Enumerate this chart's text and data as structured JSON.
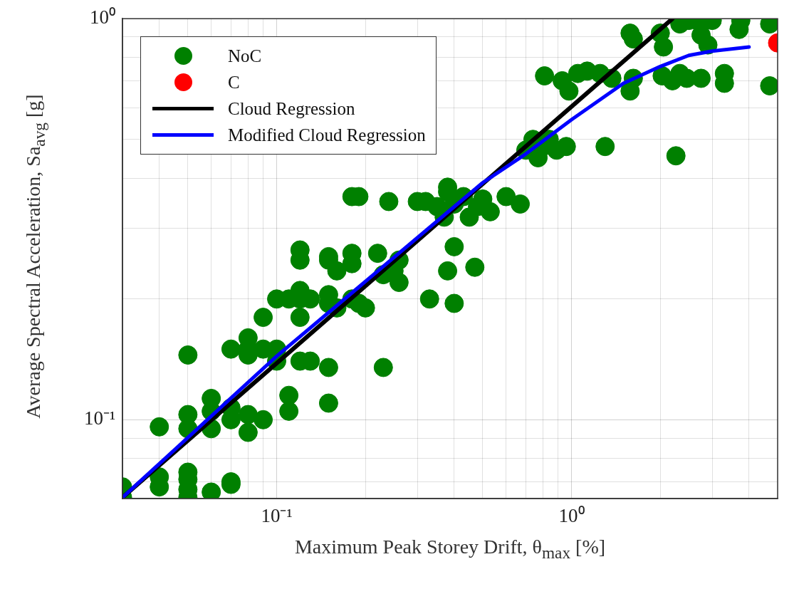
{
  "chart_data": {
    "type": "scatter",
    "xlabel": "Maximum Peak Storey Drift, θ$_{max}$ [%]",
    "ylabel": "Average Spectral Acceleration, Sa$_{avg}$ [g]",
    "log": "xy",
    "grid": true,
    "legend": "top left",
    "xlim": [
      0.03,
      5
    ],
    "ylim": [
      0.0636,
      1
    ],
    "xticks": [
      {
        "value": 0.03,
        "label": null
      },
      {
        "value": 0.04,
        "label": null
      },
      {
        "value": 0.05,
        "label": null
      },
      {
        "value": 0.06,
        "label": null
      },
      {
        "value": 0.07,
        "label": null
      },
      {
        "value": 0.08,
        "label": null
      },
      {
        "value": 0.09,
        "label": null
      },
      {
        "value": 0.1,
        "label": "10⁻¹"
      },
      {
        "value": 0.2,
        "label": null
      },
      {
        "value": 0.3,
        "label": null
      },
      {
        "value": 0.4,
        "label": null
      },
      {
        "value": 0.5,
        "label": null
      },
      {
        "value": 0.6,
        "label": null
      },
      {
        "value": 0.7,
        "label": null
      },
      {
        "value": 0.8,
        "label": null
      },
      {
        "value": 0.9,
        "label": null
      },
      {
        "value": 1,
        "label": "10⁰"
      },
      {
        "value": 2,
        "label": null
      },
      {
        "value": 3,
        "label": null
      },
      {
        "value": 4,
        "label": null
      },
      {
        "value": 5,
        "label": null
      }
    ],
    "yticks": [
      {
        "value": 0.07,
        "label": null
      },
      {
        "value": 0.08,
        "label": null
      },
      {
        "value": 0.09,
        "label": null
      },
      {
        "value": 0.1,
        "label": "10⁻¹"
      },
      {
        "value": 0.2,
        "label": null
      },
      {
        "value": 0.3,
        "label": null
      },
      {
        "value": 0.4,
        "label": null
      },
      {
        "value": 0.5,
        "label": null
      },
      {
        "value": 0.6,
        "label": null
      },
      {
        "value": 0.7,
        "label": null
      },
      {
        "value": 0.8,
        "label": null
      },
      {
        "value": 0.9,
        "label": null
      },
      {
        "value": 1,
        "label": "10⁰"
      }
    ],
    "series": [
      {
        "name": "NoC",
        "marker": "circle",
        "color": "#008000",
        "x": [
          0.03,
          0.03,
          0.04,
          0.04,
          0.04,
          0.05,
          0.05,
          0.05,
          0.05,
          0.05,
          0.05,
          0.05,
          0.06,
          0.06,
          0.06,
          0.06,
          0.07,
          0.07,
          0.07,
          0.07,
          0.07,
          0.08,
          0.08,
          0.08,
          0.08,
          0.08,
          0.09,
          0.09,
          0.09,
          0.1,
          0.1,
          0.1,
          0.11,
          0.11,
          0.11,
          0.12,
          0.12,
          0.12,
          0.12,
          0.12,
          0.12,
          0.13,
          0.13,
          0.15,
          0.15,
          0.15,
          0.15,
          0.15,
          0.15,
          0.16,
          0.16,
          0.18,
          0.18,
          0.18,
          0.18,
          0.19,
          0.19,
          0.2,
          0.22,
          0.23,
          0.23,
          0.24,
          0.25,
          0.26,
          0.26,
          0.3,
          0.32,
          0.33,
          0.35,
          0.37,
          0.38,
          0.38,
          0.38,
          0.4,
          0.4,
          0.4,
          0.43,
          0.45,
          0.47,
          0.48,
          0.5,
          0.53,
          0.6,
          0.67,
          0.7,
          0.74,
          0.77,
          0.8,
          0.84,
          0.89,
          0.96,
          1.3,
          2.26,
          0.81,
          0.93,
          0.98,
          1.05,
          1.13,
          1.25,
          1.37,
          1.58,
          1.62,
          2.03,
          2.2,
          2.33,
          2.46,
          2.75,
          3.3,
          3.3,
          4.7,
          1.58,
          1.62,
          2,
          2.05,
          2.33,
          2.5,
          2.75,
          2.75,
          2.9,
          3,
          3.7,
          3.75,
          4.7
        ],
        "values": [
          0.068,
          0.064,
          0.096,
          0.072,
          0.068,
          0.145,
          0.103,
          0.095,
          0.074,
          0.071,
          0.067,
          0.064,
          0.113,
          0.105,
          0.095,
          0.066,
          0.15,
          0.107,
          0.1,
          0.07,
          0.069,
          0.16,
          0.15,
          0.145,
          0.103,
          0.093,
          0.18,
          0.15,
          0.1,
          0.2,
          0.15,
          0.14,
          0.2,
          0.115,
          0.105,
          0.265,
          0.25,
          0.21,
          0.2,
          0.18,
          0.14,
          0.2,
          0.14,
          0.255,
          0.25,
          0.205,
          0.195,
          0.135,
          0.11,
          0.235,
          0.19,
          0.36,
          0.26,
          0.245,
          0.2,
          0.36,
          0.195,
          0.19,
          0.26,
          0.23,
          0.135,
          0.35,
          0.235,
          0.25,
          0.22,
          0.35,
          0.35,
          0.2,
          0.34,
          0.32,
          0.37,
          0.38,
          0.235,
          0.345,
          0.27,
          0.195,
          0.36,
          0.32,
          0.24,
          0.34,
          0.355,
          0.33,
          0.36,
          0.345,
          0.47,
          0.5,
          0.45,
          0.48,
          0.5,
          0.47,
          0.48,
          0.48,
          0.455,
          0.72,
          0.7,
          0.66,
          0.73,
          0.74,
          0.73,
          0.71,
          0.66,
          0.71,
          0.72,
          0.7,
          0.73,
          0.71,
          0.71,
          0.73,
          0.69,
          0.68,
          0.92,
          0.89,
          0.92,
          0.85,
          0.97,
          0.99,
          0.91,
          0.97,
          0.86,
          0.99,
          0.94,
          0.99,
          0.97
        ]
      },
      {
        "name": "C",
        "marker": "circle",
        "color": "#ff0000",
        "x": [
          5
        ],
        "values": [
          0.87
        ]
      },
      {
        "name": "Cloud Regression",
        "type": "line",
        "marker": "none",
        "color": "#000000",
        "x": [
          0.03,
          2.2
        ],
        "values": [
          0.064,
          1
        ]
      },
      {
        "name": "Modified Cloud Regression",
        "type": "line",
        "marker": "none",
        "color": "#0000ff",
        "x": [
          0.03,
          0.1,
          0.5,
          0.7,
          1,
          1.5,
          2,
          2.5,
          3,
          4
        ],
        "values": [
          0.064,
          0.144,
          0.39,
          0.46,
          0.56,
          0.69,
          0.76,
          0.81,
          0.83,
          0.85
        ]
      }
    ]
  }
}
